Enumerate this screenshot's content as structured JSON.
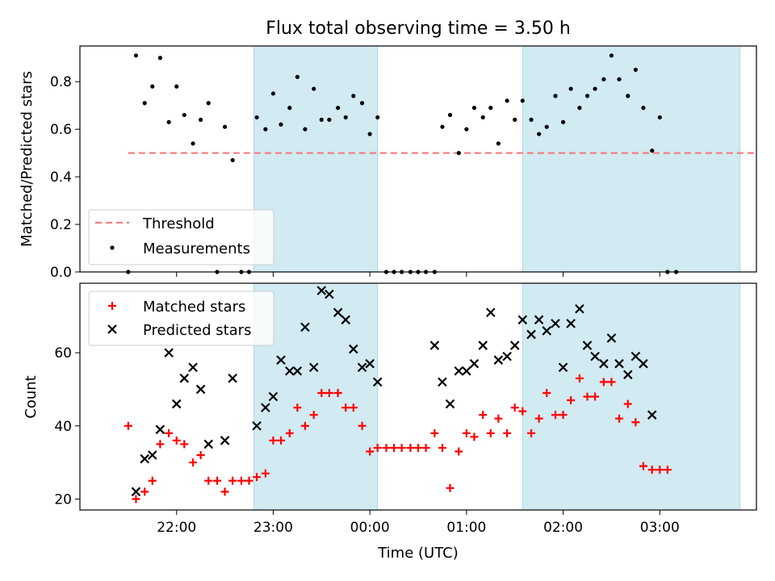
{
  "chart_data": {
    "title": "Flux total observing time = 3.50 h",
    "xlabel": "Time (UTC)",
    "x_ticks": [
      "22:00",
      "23:00",
      "00:00",
      "01:00",
      "02:00",
      "03:00"
    ],
    "x_tick_hours": [
      22,
      23,
      24,
      25,
      26,
      27
    ],
    "x_range_hours": [
      21.0,
      28.0
    ],
    "shaded_spans_hours": [
      [
        22.8,
        24.08
      ],
      [
        25.58,
        27.83
      ]
    ],
    "shade_color": "#add8e6",
    "top": {
      "type": "scatter",
      "ylabel": "Matched/Predicted stars",
      "ylim": [
        0,
        0.95
      ],
      "yticks": [
        "0.0",
        "0.2",
        "0.4",
        "0.6",
        "0.8"
      ],
      "ytick_values": [
        0,
        0.2,
        0.4,
        0.6,
        0.8
      ],
      "threshold": {
        "name": "Threshold",
        "value": 0.5,
        "x_range": [
          21.5,
          28.0
        ],
        "color": "#f08080"
      },
      "series_name": "Measurements",
      "points": [
        [
          21.5,
          0.0
        ],
        [
          21.58,
          0.91
        ],
        [
          21.67,
          0.71
        ],
        [
          21.75,
          0.78
        ],
        [
          21.83,
          0.9
        ],
        [
          21.92,
          0.63
        ],
        [
          22.0,
          0.78
        ],
        [
          22.08,
          0.66
        ],
        [
          22.17,
          0.54
        ],
        [
          22.25,
          0.64
        ],
        [
          22.33,
          0.71
        ],
        [
          22.42,
          0.0
        ],
        [
          22.5,
          0.61
        ],
        [
          22.58,
          0.47
        ],
        [
          22.67,
          0.0
        ],
        [
          22.75,
          0.0
        ],
        [
          22.83,
          0.65
        ],
        [
          22.92,
          0.6
        ],
        [
          23.0,
          0.75
        ],
        [
          23.08,
          0.62
        ],
        [
          23.17,
          0.69
        ],
        [
          23.25,
          0.82
        ],
        [
          23.33,
          0.6
        ],
        [
          23.42,
          0.77
        ],
        [
          23.5,
          0.64
        ],
        [
          23.58,
          0.64
        ],
        [
          23.67,
          0.69
        ],
        [
          23.75,
          0.65
        ],
        [
          23.83,
          0.74
        ],
        [
          23.92,
          0.71
        ],
        [
          24.0,
          0.58
        ],
        [
          24.08,
          0.65
        ],
        [
          24.17,
          0.0
        ],
        [
          24.25,
          0.0
        ],
        [
          24.33,
          0.0
        ],
        [
          24.42,
          0.0
        ],
        [
          24.5,
          0.0
        ],
        [
          24.58,
          0.0
        ],
        [
          24.67,
          0.0
        ],
        [
          24.75,
          0.61
        ],
        [
          24.83,
          0.66
        ],
        [
          24.92,
          0.5
        ],
        [
          25.0,
          0.6
        ],
        [
          25.08,
          0.69
        ],
        [
          25.17,
          0.65
        ],
        [
          25.25,
          0.69
        ],
        [
          25.33,
          0.54
        ],
        [
          25.42,
          0.72
        ],
        [
          25.5,
          0.64
        ],
        [
          25.58,
          0.72
        ],
        [
          25.67,
          0.64
        ],
        [
          25.75,
          0.58
        ],
        [
          25.83,
          0.61
        ],
        [
          25.92,
          0.74
        ],
        [
          26.0,
          0.63
        ],
        [
          26.08,
          0.77
        ],
        [
          26.17,
          0.69
        ],
        [
          26.25,
          0.74
        ],
        [
          26.33,
          0.77
        ],
        [
          26.42,
          0.81
        ],
        [
          26.5,
          0.91
        ],
        [
          26.58,
          0.81
        ],
        [
          26.67,
          0.74
        ],
        [
          26.75,
          0.85
        ],
        [
          26.83,
          0.69
        ],
        [
          26.92,
          0.51
        ],
        [
          27.0,
          0.65
        ],
        [
          27.08,
          0.0
        ],
        [
          27.17,
          0.0
        ]
      ]
    },
    "bottom": {
      "type": "scatter",
      "ylabel": "Count",
      "ylim": [
        17,
        79
      ],
      "yticks": [
        "20",
        "40",
        "60"
      ],
      "ytick_values": [
        20,
        40,
        60
      ],
      "series": [
        {
          "name": "Matched stars",
          "marker": "+",
          "color": "#ff0000",
          "points": [
            [
              21.5,
              40
            ],
            [
              21.58,
              20
            ],
            [
              21.67,
              22
            ],
            [
              21.75,
              25
            ],
            [
              21.83,
              35
            ],
            [
              21.92,
              38
            ],
            [
              22.0,
              36
            ],
            [
              22.08,
              35
            ],
            [
              22.17,
              30
            ],
            [
              22.25,
              32
            ],
            [
              22.33,
              25
            ],
            [
              22.42,
              25
            ],
            [
              22.5,
              22
            ],
            [
              22.58,
              25
            ],
            [
              22.67,
              25
            ],
            [
              22.75,
              25
            ],
            [
              22.83,
              26
            ],
            [
              22.92,
              27
            ],
            [
              23.0,
              36
            ],
            [
              23.08,
              36
            ],
            [
              23.17,
              38
            ],
            [
              23.25,
              45
            ],
            [
              23.33,
              40
            ],
            [
              23.42,
              43
            ],
            [
              23.5,
              49
            ],
            [
              23.58,
              49
            ],
            [
              23.67,
              49
            ],
            [
              23.75,
              45
            ],
            [
              23.83,
              45
            ],
            [
              23.92,
              40
            ],
            [
              24.0,
              33
            ],
            [
              24.08,
              34
            ],
            [
              24.17,
              34
            ],
            [
              24.25,
              34
            ],
            [
              24.33,
              34
            ],
            [
              24.42,
              34
            ],
            [
              24.5,
              34
            ],
            [
              24.58,
              34
            ],
            [
              24.67,
              38
            ],
            [
              24.75,
              34
            ],
            [
              24.83,
              23
            ],
            [
              24.92,
              33
            ],
            [
              25.0,
              38
            ],
            [
              25.08,
              37
            ],
            [
              25.17,
              43
            ],
            [
              25.25,
              38
            ],
            [
              25.33,
              42
            ],
            [
              25.42,
              38
            ],
            [
              25.5,
              45
            ],
            [
              25.58,
              44
            ],
            [
              25.67,
              38
            ],
            [
              25.75,
              42
            ],
            [
              25.83,
              49
            ],
            [
              25.92,
              43
            ],
            [
              26.0,
              43
            ],
            [
              26.08,
              47
            ],
            [
              26.17,
              53
            ],
            [
              26.25,
              48
            ],
            [
              26.33,
              48
            ],
            [
              26.42,
              52
            ],
            [
              26.5,
              52
            ],
            [
              26.58,
              42
            ],
            [
              26.67,
              46
            ],
            [
              26.75,
              41
            ],
            [
              26.83,
              29
            ],
            [
              26.92,
              28
            ],
            [
              27.0,
              28
            ],
            [
              27.08,
              28
            ]
          ]
        },
        {
          "name": "Predicted stars",
          "marker": "x",
          "color": "#000000",
          "points": [
            [
              21.58,
              22
            ],
            [
              21.67,
              31
            ],
            [
              21.75,
              32
            ],
            [
              21.83,
              39
            ],
            [
              21.92,
              60
            ],
            [
              22.0,
              46
            ],
            [
              22.08,
              53
            ],
            [
              22.17,
              56
            ],
            [
              22.25,
              50
            ],
            [
              22.33,
              35
            ],
            [
              22.5,
              36
            ],
            [
              22.58,
              53
            ],
            [
              22.83,
              40
            ],
            [
              22.92,
              45
            ],
            [
              23.0,
              48
            ],
            [
              23.08,
              58
            ],
            [
              23.17,
              55
            ],
            [
              23.25,
              55
            ],
            [
              23.33,
              67
            ],
            [
              23.42,
              56
            ],
            [
              23.5,
              77
            ],
            [
              23.58,
              76
            ],
            [
              23.67,
              71
            ],
            [
              23.75,
              69
            ],
            [
              23.83,
              61
            ],
            [
              23.92,
              56
            ],
            [
              24.0,
              57
            ],
            [
              24.08,
              52
            ],
            [
              24.67,
              62
            ],
            [
              24.75,
              52
            ],
            [
              24.83,
              46
            ],
            [
              24.92,
              55
            ],
            [
              25.0,
              55
            ],
            [
              25.08,
              57
            ],
            [
              25.17,
              62
            ],
            [
              25.25,
              71
            ],
            [
              25.33,
              58
            ],
            [
              25.42,
              59
            ],
            [
              25.5,
              62
            ],
            [
              25.58,
              69
            ],
            [
              25.67,
              65
            ],
            [
              25.75,
              69
            ],
            [
              25.83,
              66
            ],
            [
              25.92,
              68
            ],
            [
              26.0,
              56
            ],
            [
              26.08,
              68
            ],
            [
              26.17,
              72
            ],
            [
              26.25,
              62
            ],
            [
              26.33,
              59
            ],
            [
              26.42,
              57
            ],
            [
              26.5,
              64
            ],
            [
              26.58,
              57
            ],
            [
              26.67,
              54
            ],
            [
              26.75,
              59
            ],
            [
              26.83,
              57
            ],
            [
              26.92,
              43
            ]
          ]
        }
      ]
    }
  }
}
